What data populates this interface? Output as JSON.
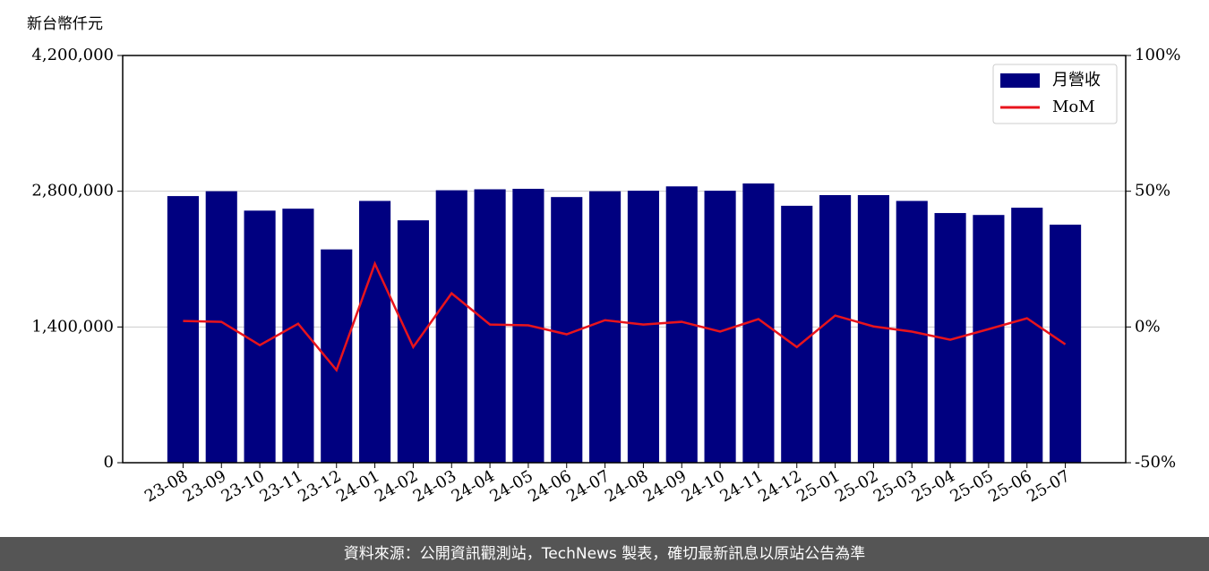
{
  "chart_data": {
    "type": "bar-line",
    "y_label": "新台幣仟元",
    "categories": [
      "23-08",
      "23-09",
      "23-10",
      "23-11",
      "23-12",
      "24-01",
      "24-02",
      "24-03",
      "24-04",
      "24-05",
      "24-06",
      "24-07",
      "24-08",
      "24-09",
      "24-10",
      "24-11",
      "24-12",
      "25-01",
      "25-02",
      "25-03",
      "25-04",
      "25-05",
      "25-06",
      "25-07"
    ],
    "series": [
      {
        "name": "月營收",
        "type": "bar",
        "color": "#000080",
        "values": [
          2750000,
          2800000,
          2600000,
          2620000,
          2200000,
          2700000,
          2500000,
          2810000,
          2820000,
          2825000,
          2740000,
          2800000,
          2805000,
          2850000,
          2805000,
          2880000,
          2650000,
          2760000,
          2760000,
          2700000,
          2575000,
          2555000,
          2630000,
          2455000
        ]
      },
      {
        "name": "MoM",
        "type": "line",
        "axis": "y2",
        "color": "#e8141c",
        "values": [
          2.2,
          1.9,
          -6.7,
          1.2,
          -15.9,
          23.3,
          -7.4,
          12.4,
          0.9,
          0.6,
          -2.7,
          2.5,
          0.9,
          1.9,
          -1.7,
          2.9,
          -7.4,
          4.2,
          0.2,
          -1.7,
          -4.7,
          -0.8,
          3.2,
          -6.4
        ]
      }
    ],
    "ylim": [
      0,
      4200000
    ],
    "yticks": [
      0,
      {
        "value": 1400000,
        "label": "1,400,000"
      },
      {
        "value": 2800000,
        "label": "2,800,000"
      },
      {
        "value": 4200000,
        "label": "4,200,000"
      }
    ],
    "y2lim": [
      -50,
      100
    ],
    "y2ticks": [
      {
        "value": -50,
        "label": "-50%"
      },
      {
        "value": 0,
        "label": "0%"
      },
      {
        "value": 50,
        "label": "50%"
      },
      {
        "value": 100,
        "label": "100%"
      }
    ],
    "grid": true,
    "legend": "upper right",
    "footer": "資料來源：公開資訊觀測站，TechNews 製表，確切最新訊息以原站公告為準"
  }
}
